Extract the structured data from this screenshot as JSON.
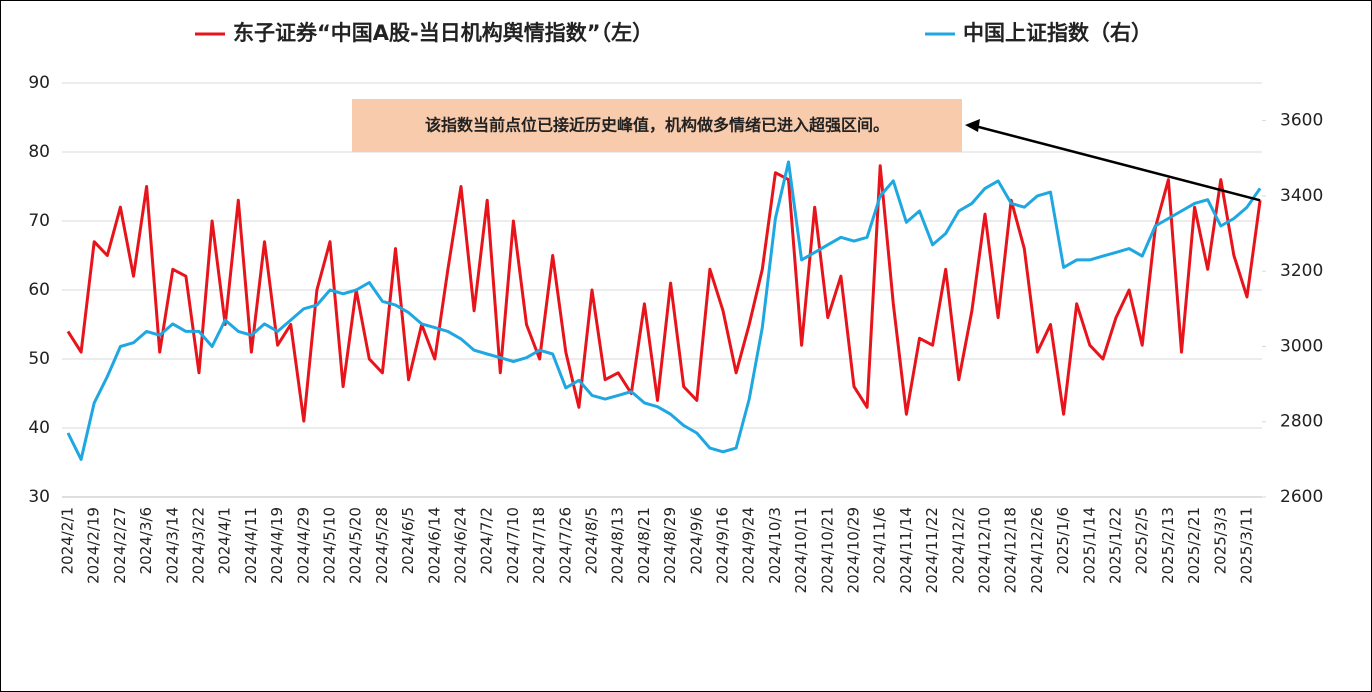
{
  "chart_data": {
    "type": "line",
    "annotation": "该指数当前点位已接近历史峰值，机构做多情绪已进入超强区间。",
    "categories": [
      "2024/2/1",
      null,
      "2024/2/19",
      null,
      "2024/2/27",
      null,
      "2024/3/6",
      null,
      "2024/3/14",
      null,
      "2024/3/22",
      null,
      "2024/4/1",
      null,
      "2024/4/11",
      null,
      "2024/4/19",
      null,
      "2024/4/29",
      null,
      "2024/5/10",
      null,
      "2024/5/20",
      null,
      "2024/5/28",
      null,
      "2024/6/5",
      null,
      "2024/6/14",
      null,
      "2024/6/24",
      null,
      "2024/7/2",
      null,
      "2024/7/10",
      null,
      "2024/7/18",
      null,
      "2024/7/26",
      null,
      "2024/8/5",
      null,
      "2024/8/13",
      null,
      "2024/8/21",
      null,
      "2024/8/29",
      null,
      "2024/9/6",
      null,
      "2024/9/16",
      null,
      "2024/9/24",
      null,
      "2024/10/3",
      null,
      "2024/10/11",
      null,
      "2024/10/21",
      null,
      "2024/10/29",
      null,
      "2024/11/6",
      null,
      "2024/11/14",
      null,
      "2024/11/22",
      null,
      "2024/12/2",
      null,
      "2024/12/10",
      null,
      "2024/12/18",
      null,
      "2024/12/26",
      null,
      "2025/1/6",
      null,
      "2025/1/14",
      null,
      "2025/1/22",
      null,
      "2025/2/5",
      null,
      "2025/2/13",
      null,
      "2025/2/21",
      null,
      "2025/3/3",
      null,
      "2025/3/11",
      null
    ],
    "series": [
      {
        "name": "东子证券“中国A股-当日机构舆情指数”（左）",
        "color": "#e8141b",
        "values": [
          54,
          51,
          67,
          65,
          72,
          62,
          75,
          51,
          63,
          62,
          48,
          70,
          55,
          73,
          51,
          67,
          52,
          55,
          41,
          60,
          67,
          46,
          60,
          50,
          48,
          66,
          47,
          55,
          50,
          63,
          75,
          57,
          73,
          48,
          70,
          55,
          50,
          65,
          51,
          43,
          60,
          47,
          48,
          45,
          58,
          44,
          61,
          46,
          44,
          63,
          57,
          48,
          55,
          63,
          77,
          76,
          52,
          72,
          56,
          62,
          46,
          43,
          78,
          58,
          42,
          53,
          52,
          63,
          47,
          57,
          71,
          56,
          73,
          66,
          51,
          55,
          42,
          58,
          52,
          50,
          56,
          60,
          52,
          69,
          76,
          51,
          72,
          63,
          76,
          65,
          59,
          73
        ]
      },
      {
        "name": "中国上证指数（右）",
        "color": "#1ea7e1",
        "axis": "y2",
        "values": [
          2770,
          2700,
          2850,
          2920,
          3000,
          3010,
          3040,
          3030,
          3060,
          3040,
          3040,
          3000,
          3070,
          3040,
          3030,
          3060,
          3040,
          3070,
          3100,
          3110,
          3150,
          3140,
          3150,
          3170,
          3120,
          3110,
          3090,
          3060,
          3050,
          3040,
          3020,
          2990,
          2980,
          2970,
          2960,
          2970,
          2990,
          2980,
          2890,
          2910,
          2870,
          2860,
          2870,
          2880,
          2850,
          2840,
          2820,
          2790,
          2770,
          2730,
          2720,
          2730,
          2860,
          3050,
          3340,
          3490,
          3230,
          3250,
          3270,
          3290,
          3280,
          3290,
          3400,
          3440,
          3330,
          3360,
          3270,
          3300,
          3360,
          3380,
          3420,
          3440,
          3380,
          3370,
          3400,
          3410,
          3210,
          3230,
          3230,
          3240,
          3250,
          3260,
          3240,
          3320,
          3340,
          3360,
          3380,
          3390,
          3320,
          3340,
          3370,
          3420
        ]
      }
    ],
    "ylim": [
      30,
      90
    ],
    "yticks": [
      30,
      40,
      50,
      60,
      70,
      80,
      90
    ],
    "y2lim": [
      2600,
      3700
    ],
    "y2ticks": [
      2600,
      2800,
      3000,
      3200,
      3400,
      3600
    ],
    "grid": true
  }
}
